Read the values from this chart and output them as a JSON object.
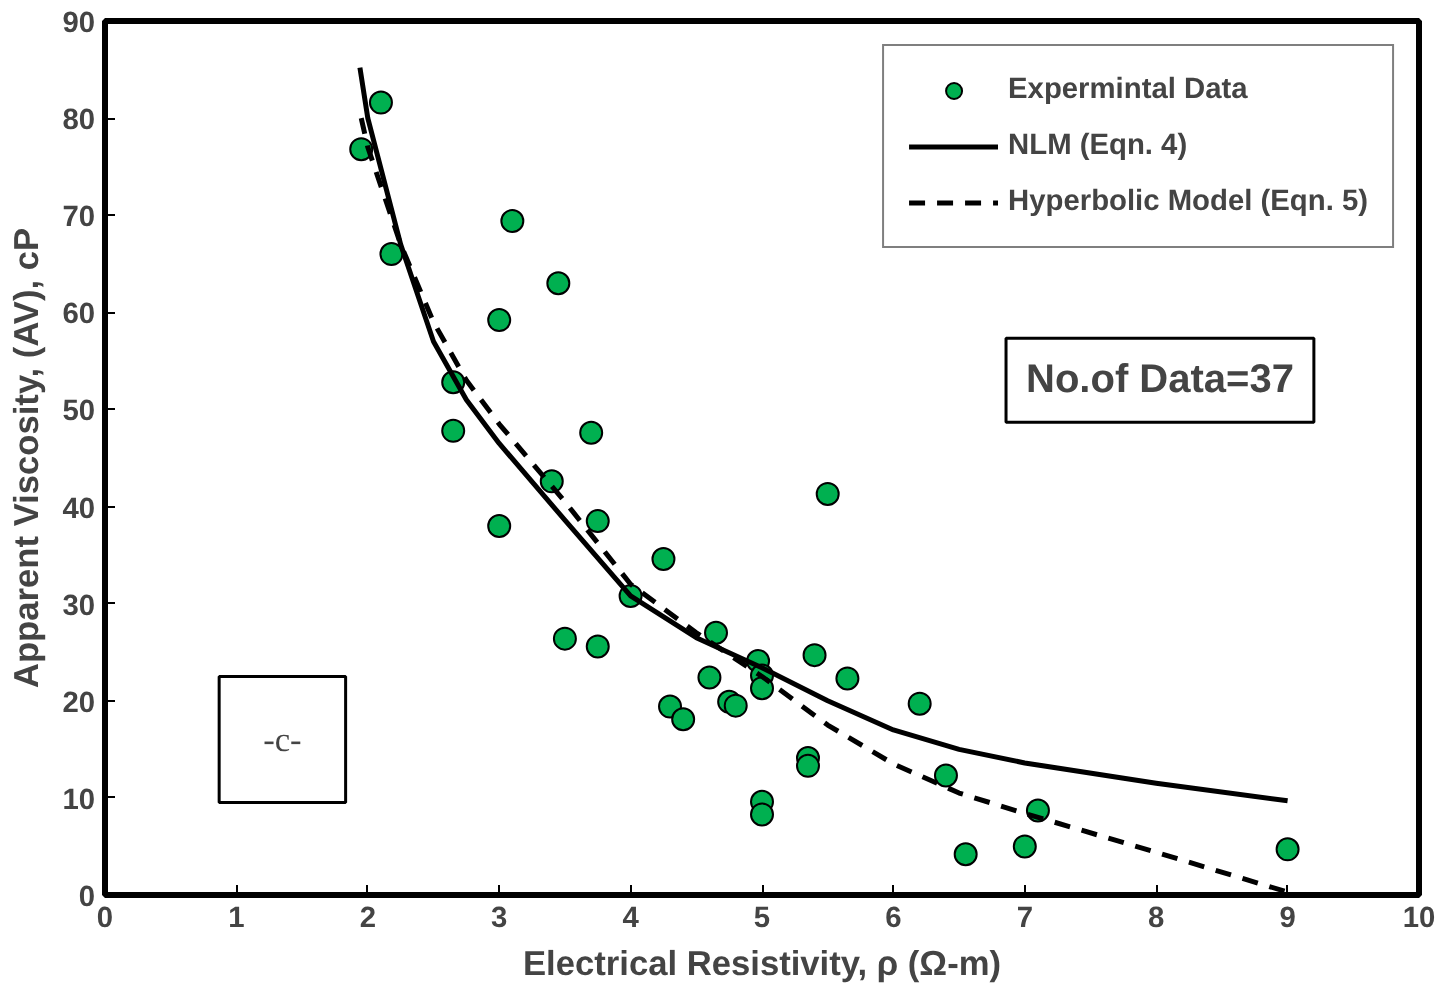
{
  "chart_data": {
    "type": "scatter",
    "xlabel": "Electrical Resistivity, ρ (Ω-m)",
    "ylabel": "Apparent Viscosity, (AV), cP",
    "xlim": [
      0,
      10
    ],
    "ylim": [
      0,
      90
    ],
    "xticks": [
      0,
      1,
      2,
      3,
      4,
      5,
      6,
      7,
      8,
      9,
      10
    ],
    "yticks": [
      0,
      10,
      20,
      30,
      40,
      50,
      60,
      70,
      80,
      90
    ],
    "grid": false,
    "legend": "top right",
    "annotations": [
      "No.of Data=37",
      "-c-"
    ],
    "series": [
      {
        "name": "Expermintal Data",
        "marker": "circle",
        "color": "#00b050",
        "x": [
          1.95,
          2.1,
          2.18,
          2.65,
          2.65,
          3.0,
          3.0,
          3.1,
          3.45,
          3.4,
          3.5,
          3.7,
          3.75,
          3.75,
          4.0,
          4.25,
          4.3,
          4.4,
          4.6,
          4.65,
          4.75,
          4.8,
          4.97,
          5.0,
          5.0,
          5.0,
          5.0,
          5.35,
          5.35,
          5.4,
          5.5,
          5.65,
          6.2,
          6.4,
          6.55,
          7.0,
          7.1,
          9.0
        ],
        "values": [
          76.8,
          81.6,
          66,
          52.8,
          47.8,
          59.2,
          38,
          69.4,
          63,
          42.6,
          26.4,
          47.6,
          38.5,
          25.6,
          30.8,
          34.6,
          19.4,
          18.1,
          22.4,
          27,
          19.9,
          19.5,
          24.1,
          22.6,
          21.3,
          9.6,
          8.3,
          14.1,
          13.3,
          24.7,
          41.3,
          22.3,
          19.7,
          12.3,
          4.2,
          5,
          8.7,
          4.7
        ]
      },
      {
        "name": "NLM (Eqn. 4)",
        "type": "line",
        "marker": "none",
        "line_style": "solid",
        "color": "#000000",
        "x": [
          1.94,
          2,
          2.25,
          2.5,
          2.75,
          3,
          3.5,
          4,
          4.5,
          5,
          5.5,
          6,
          6.5,
          7,
          8,
          9
        ],
        "values": [
          85.2,
          80,
          67,
          57,
          51,
          46.5,
          38.6,
          30.8,
          26.5,
          23.4,
          20,
          17,
          15,
          13.6,
          11.5,
          9.7
        ]
      },
      {
        "name": "Hyperbolic Model (Eqn. 5)",
        "type": "line",
        "marker": "none",
        "line_style": "dashed",
        "color": "#000000",
        "x": [
          1.95,
          2,
          2.25,
          2.5,
          2.75,
          3,
          3.5,
          4,
          4.5,
          5,
          5.5,
          6,
          6.5,
          7,
          8,
          9
        ],
        "values": [
          80,
          77,
          67,
          59,
          53,
          48.5,
          40.5,
          32,
          27,
          22.5,
          17.5,
          13.5,
          10.5,
          8.4,
          4.4,
          0.3
        ]
      }
    ]
  }
}
